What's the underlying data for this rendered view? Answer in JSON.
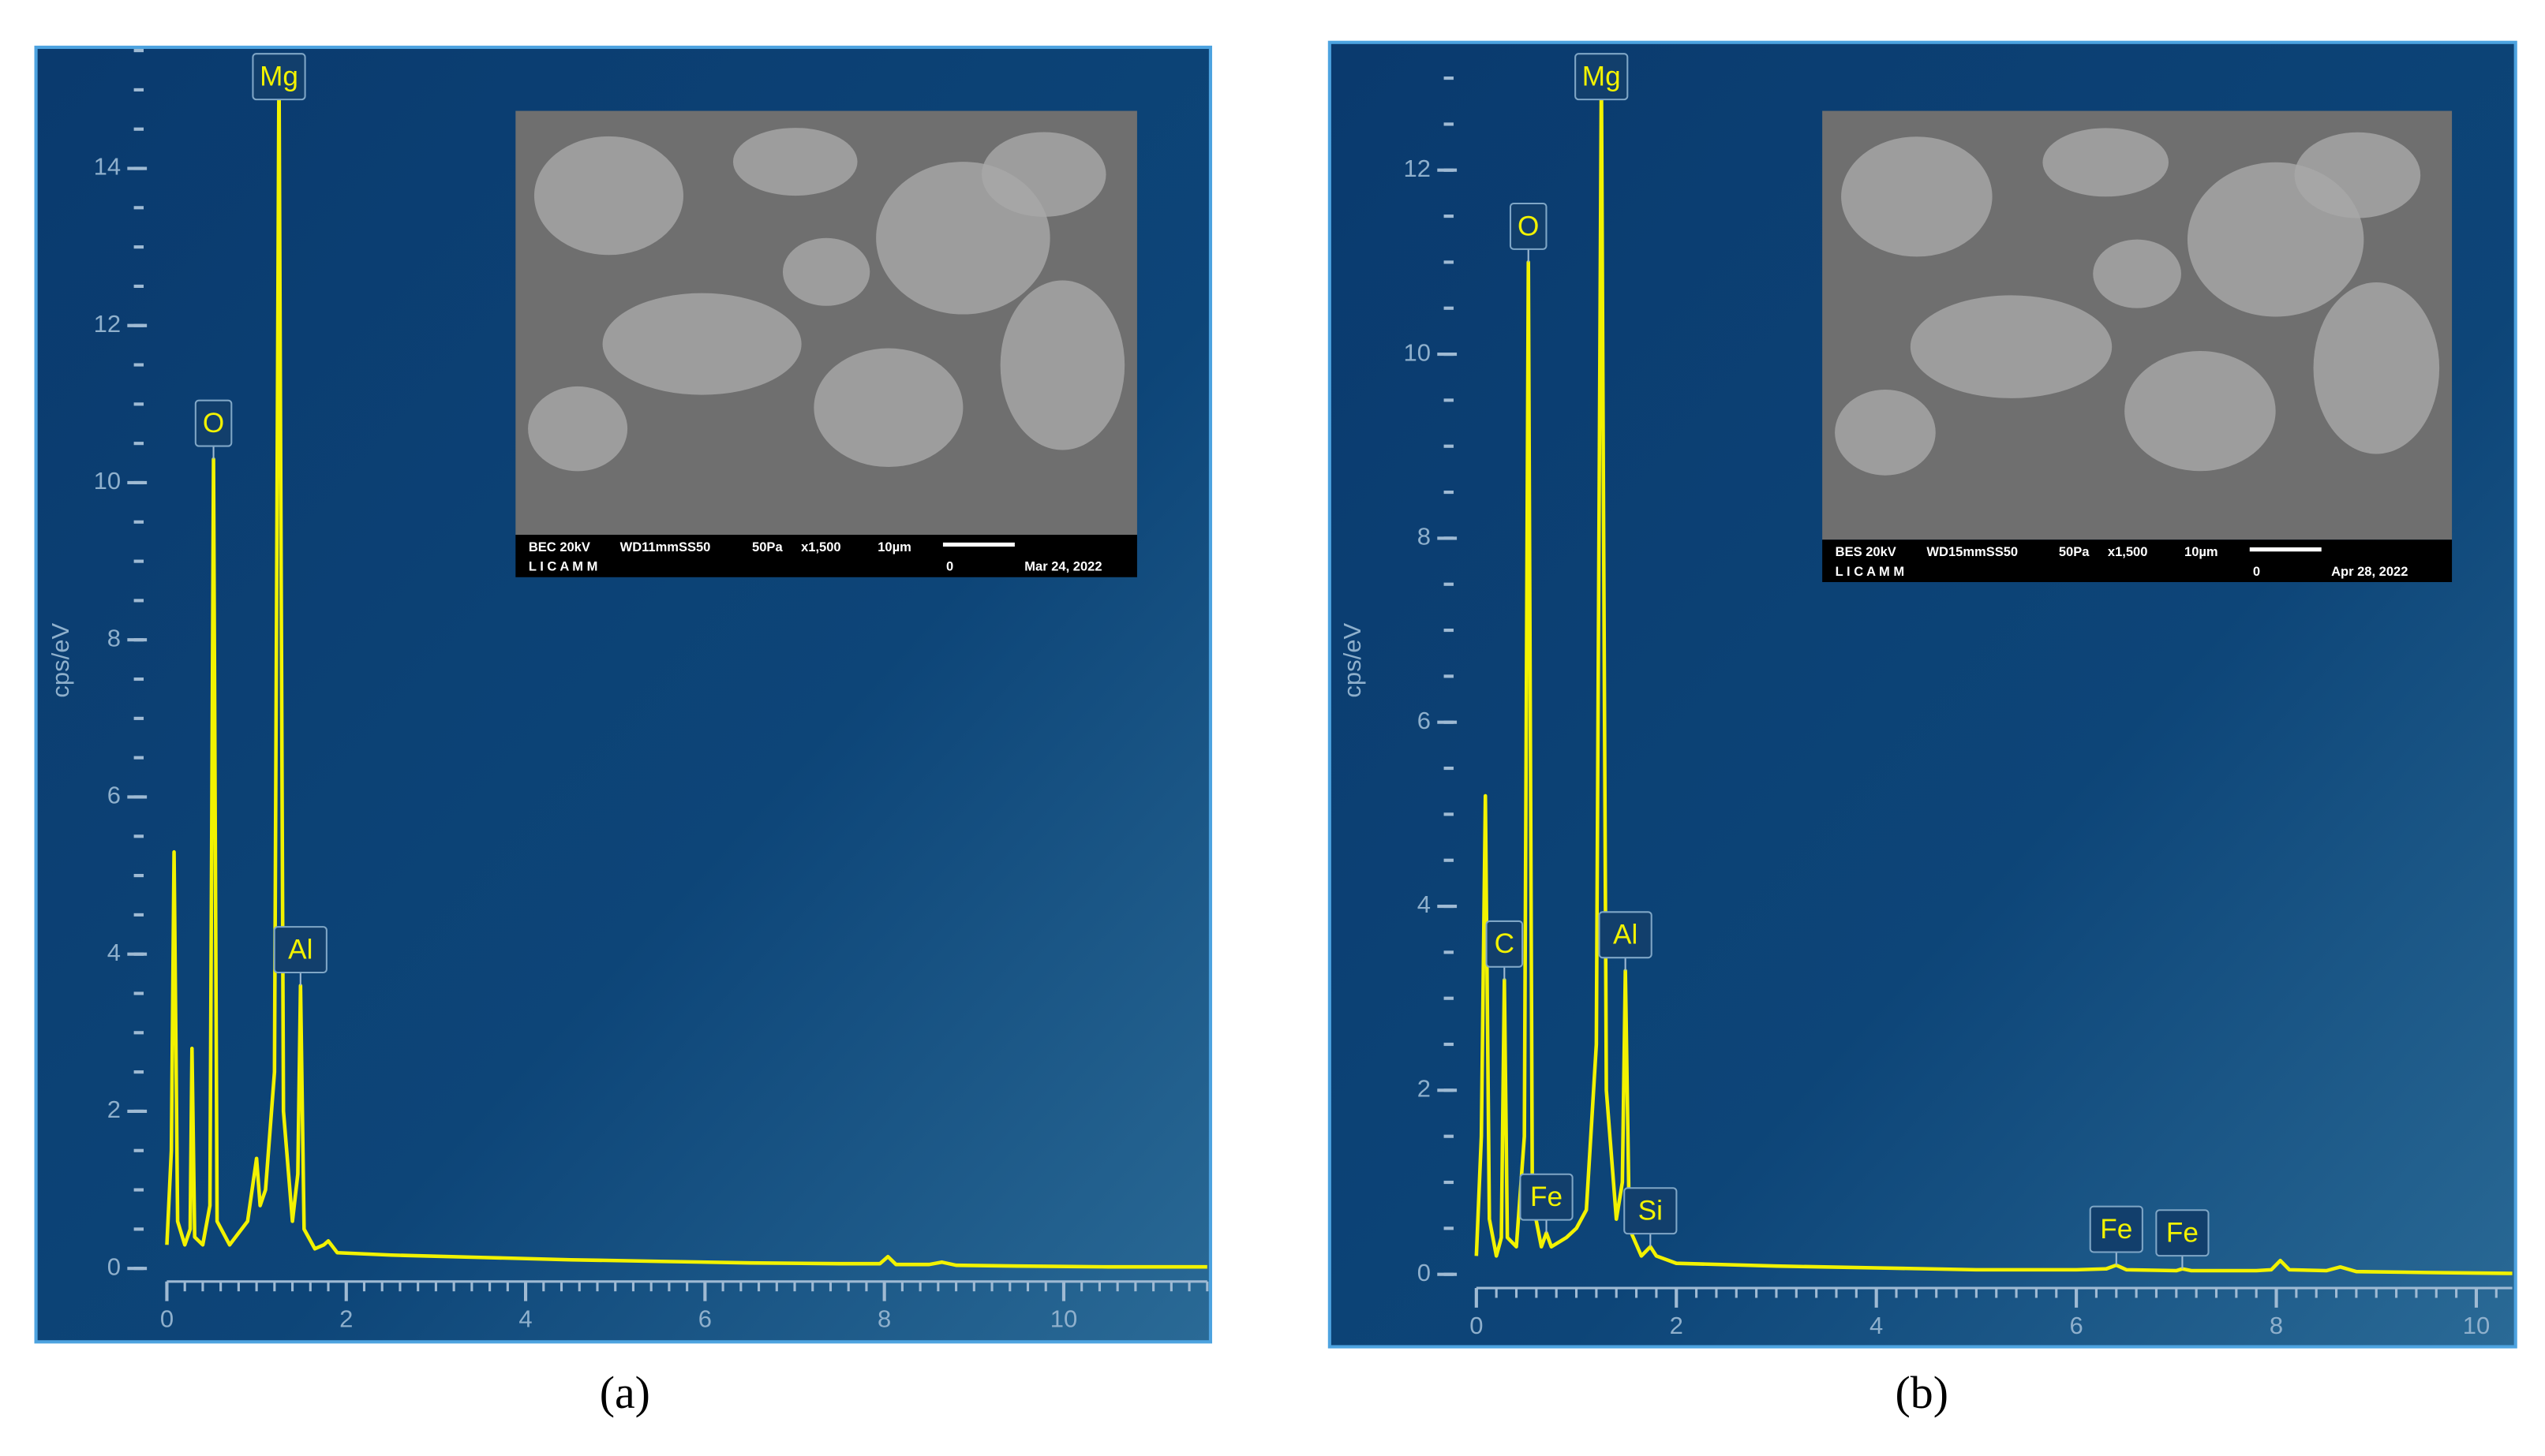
{
  "chart_data": [
    {
      "type": "line",
      "ylabel": "cps/eV",
      "caption": "(a)",
      "xlim": [
        -0.15,
        11.6
      ],
      "xticks": [
        0,
        2,
        4,
        6,
        8,
        10
      ],
      "ylim": [
        -0.25,
        15.5
      ],
      "yticks": [
        0,
        2,
        4,
        6,
        8,
        10,
        12,
        14
      ],
      "series": [
        {
          "color": "#f2f200",
          "x": [
            0,
            0.05,
            0.08,
            0.12,
            0.2,
            0.26,
            0.28,
            0.31,
            0.4,
            0.48,
            0.52,
            0.56,
            0.7,
            0.9,
            1.0,
            1.04,
            1.1,
            1.2,
            1.25,
            1.3,
            1.4,
            1.46,
            1.49,
            1.53,
            1.65,
            1.75,
            1.8,
            1.9,
            2.5,
            3.5,
            4.5,
            5.5,
            6.5,
            7.5,
            7.95,
            8.04,
            8.13,
            8.5,
            8.64,
            8.8,
            9.5,
            10.5,
            11.6
          ],
          "values": [
            0.3,
            1.5,
            5.3,
            0.6,
            0.3,
            0.5,
            2.8,
            0.4,
            0.3,
            0.8,
            10.3,
            0.6,
            0.3,
            0.6,
            1.4,
            0.8,
            1.0,
            2.5,
            15.3,
            2.0,
            0.6,
            1.2,
            3.6,
            0.5,
            0.25,
            0.3,
            0.35,
            0.2,
            0.17,
            0.14,
            0.11,
            0.09,
            0.07,
            0.06,
            0.06,
            0.15,
            0.05,
            0.05,
            0.08,
            0.04,
            0.03,
            0.02,
            0.02
          ]
        }
      ],
      "peak_labels": [
        {
          "text": "O",
          "x": 0.52,
          "y": 10.3
        },
        {
          "text": "Mg",
          "x": 1.25,
          "y": 15.3
        },
        {
          "text": "Al",
          "x": 1.49,
          "y": 3.6
        }
      ],
      "inset": {
        "caption": [
          "BEC 20kV",
          "WD11mmSS50",
          "50Pa",
          "x1,500",
          "10µm",
          "L I C A M M",
          "0",
          "Mar 24, 2022"
        ]
      }
    },
    {
      "type": "line",
      "ylabel": "cps/eV",
      "caption": "(b)",
      "xlim": [
        -0.13,
        10.36
      ],
      "xticks": [
        0,
        2,
        4,
        6,
        8,
        10
      ],
      "ylim": [
        -0.22,
        13.3
      ],
      "yticks": [
        0,
        2,
        4,
        6,
        8,
        10,
        12
      ],
      "series": [
        {
          "color": "#f2f200",
          "x": [
            0,
            0.05,
            0.09,
            0.13,
            0.2,
            0.25,
            0.28,
            0.31,
            0.4,
            0.48,
            0.52,
            0.56,
            0.65,
            0.7,
            0.75,
            0.9,
            1.0,
            1.1,
            1.2,
            1.25,
            1.3,
            1.4,
            1.46,
            1.49,
            1.53,
            1.65,
            1.74,
            1.8,
            2,
            3,
            4,
            5,
            6,
            6.3,
            6.4,
            6.5,
            7.0,
            7.06,
            7.15,
            7.8,
            7.95,
            8.04,
            8.13,
            8.5,
            8.64,
            8.8,
            9.5,
            10.36
          ],
          "values": [
            0.2,
            1.5,
            5.2,
            0.6,
            0.2,
            0.4,
            3.2,
            0.4,
            0.3,
            1.5,
            11.0,
            0.8,
            0.3,
            0.45,
            0.3,
            0.4,
            0.5,
            0.7,
            2.5,
            13.1,
            2.0,
            0.6,
            1.0,
            3.3,
            0.5,
            0.2,
            0.3,
            0.2,
            0.12,
            0.09,
            0.07,
            0.05,
            0.05,
            0.06,
            0.1,
            0.05,
            0.04,
            0.06,
            0.04,
            0.04,
            0.05,
            0.15,
            0.05,
            0.04,
            0.08,
            0.03,
            0.02,
            0.01
          ]
        }
      ],
      "peak_labels": [
        {
          "text": "C",
          "x": 0.28,
          "y": 3.2
        },
        {
          "text": "O",
          "x": 0.52,
          "y": 11.0
        },
        {
          "text": "Mg",
          "x": 1.25,
          "y": 13.1
        },
        {
          "text": "Al",
          "x": 1.49,
          "y": 3.3
        },
        {
          "text": "Fe",
          "x": 0.7,
          "y": 0.45
        },
        {
          "text": "Si",
          "x": 1.74,
          "y": 0.3
        },
        {
          "text": "Fe",
          "x": 6.4,
          "y": 0.1
        },
        {
          "text": "Fe",
          "x": 7.06,
          "y": 0.06
        }
      ],
      "inset": {
        "caption": [
          "BES 20kV",
          "WD15mmSS50",
          "50Pa",
          "x1,500",
          "10µm",
          "L I C A M M",
          "0",
          "Apr 28, 2022"
        ]
      }
    }
  ]
}
